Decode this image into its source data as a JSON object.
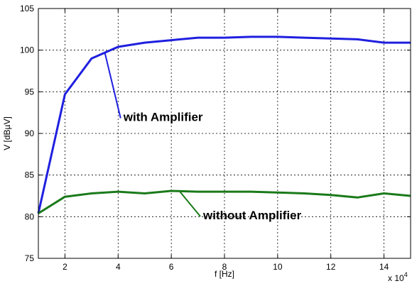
{
  "chart_data": {
    "type": "line",
    "xlabel": "f [Hz]",
    "ylabel": "V [dBµV]",
    "x_scale_note": "x 10",
    "x_scale_exponent": "4",
    "xlim": [
      1,
      15
    ],
    "ylim": [
      75,
      105
    ],
    "xticks": [
      2,
      4,
      6,
      8,
      10,
      12,
      14
    ],
    "yticks": [
      75,
      80,
      85,
      90,
      95,
      100,
      105
    ],
    "grid": true,
    "series": [
      {
        "color": "#1f1fe0",
        "x": [
          1,
          2,
          3,
          4,
          5,
          6,
          7,
          8,
          9,
          10,
          11,
          12,
          13,
          14,
          15
        ],
        "y": [
          80.4,
          94.7,
          99.0,
          100.4,
          100.9,
          101.2,
          101.5,
          101.5,
          101.6,
          101.6,
          101.5,
          101.4,
          101.3,
          100.9,
          100.9
        ]
      },
      {
        "color": "#1a7a1a",
        "x": [
          1,
          2,
          3,
          4,
          5,
          6,
          7,
          8,
          9,
          10,
          11,
          12,
          13,
          14,
          15
        ],
        "y": [
          80.4,
          82.4,
          82.8,
          83.0,
          82.8,
          83.1,
          83.0,
          83.0,
          83.0,
          82.9,
          82.8,
          82.6,
          82.3,
          82.8,
          82.5
        ]
      }
    ],
    "annotations": [
      {
        "text": "with Amplifier",
        "series": 0,
        "point_x": 3.5,
        "point_y": 99.7,
        "label_x": 4.2,
        "label_y": 92.0
      },
      {
        "text": "without Amplifier",
        "series": 1,
        "point_x": 6.3,
        "point_y": 83.1,
        "label_x": 7.2,
        "label_y": 80.2
      }
    ]
  }
}
